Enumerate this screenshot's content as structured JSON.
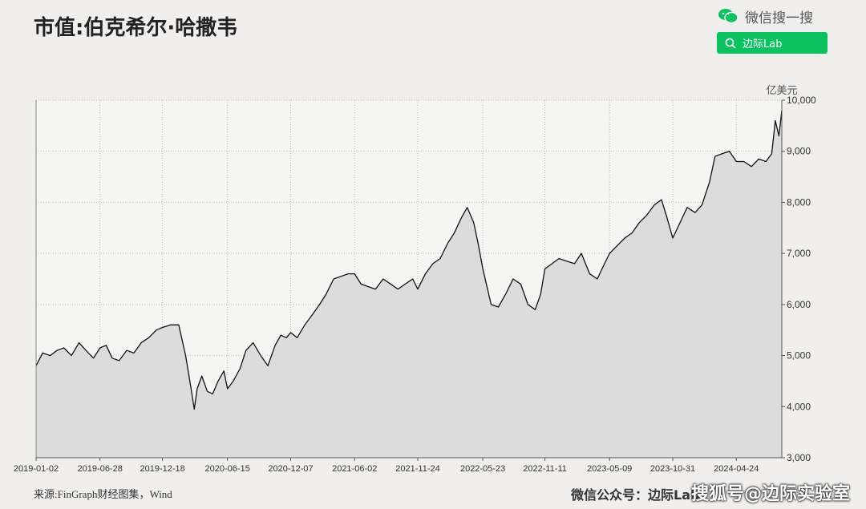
{
  "title": "市值:伯克希尔·哈撒韦",
  "wechat": {
    "label": "微信搜一搜",
    "search_text": "边际Lab",
    "brand_color": "#0bc160"
  },
  "footer": {
    "source": "来源:FinGraph财经图集，Wind",
    "account": "微信公众号：边际Lab",
    "watermark": "搜狐号@边际实验室"
  },
  "chart_data": {
    "type": "area",
    "unit_label": "亿美元",
    "ylim": [
      3000,
      10000
    ],
    "yticks": [
      "3,000",
      "4,000",
      "5,000",
      "6,000",
      "7,000",
      "8,000",
      "9,000",
      "10,000"
    ],
    "ytick_values": [
      3000,
      4000,
      5000,
      6000,
      7000,
      8000,
      9000,
      10000
    ],
    "xticks": [
      "2019-01-02",
      "2019-06-28",
      "2019-12-18",
      "2020-06-15",
      "2020-12-07",
      "2021-06-02",
      "2021-11-24",
      "2022-05-23",
      "2022-11-11",
      "2023-05-09",
      "2023-10-31",
      "2024-04-24"
    ],
    "xtick_dates": [
      "2019-01-02",
      "2019-06-28",
      "2019-12-18",
      "2020-06-15",
      "2020-12-07",
      "2021-06-02",
      "2021-11-24",
      "2022-05-23",
      "2022-11-11",
      "2023-05-09",
      "2023-10-31",
      "2024-04-24"
    ],
    "grid": true,
    "colors": {
      "line": "#111111",
      "fill": "#dcdcdc",
      "grid": "#bbbbbb"
    },
    "series": [
      {
        "dates": [
          "2019-01-02",
          "2019-01-20",
          "2019-02-10",
          "2019-03-01",
          "2019-03-20",
          "2019-04-10",
          "2019-05-01",
          "2019-05-20",
          "2019-06-10",
          "2019-06-28",
          "2019-07-15",
          "2019-08-01",
          "2019-08-20",
          "2019-09-10",
          "2019-09-30",
          "2019-10-20",
          "2019-11-10",
          "2019-12-01",
          "2019-12-18",
          "2020-01-10",
          "2020-02-01",
          "2020-02-20",
          "2020-03-05",
          "2020-03-15",
          "2020-03-23",
          "2020-04-05",
          "2020-04-20",
          "2020-05-05",
          "2020-05-20",
          "2020-06-05",
          "2020-06-15",
          "2020-07-01",
          "2020-07-20",
          "2020-08-05",
          "2020-08-25",
          "2020-09-15",
          "2020-10-05",
          "2020-10-25",
          "2020-11-10",
          "2020-11-25",
          "2020-12-07",
          "2020-12-25",
          "2021-01-15",
          "2021-02-05",
          "2021-02-25",
          "2021-03-15",
          "2021-04-05",
          "2021-04-25",
          "2021-05-15",
          "2021-06-02",
          "2021-06-20",
          "2021-07-10",
          "2021-07-30",
          "2021-08-20",
          "2021-09-10",
          "2021-09-30",
          "2021-10-20",
          "2021-11-10",
          "2021-11-24",
          "2021-12-15",
          "2022-01-05",
          "2022-01-25",
          "2022-02-15",
          "2022-03-05",
          "2022-03-25",
          "2022-04-10",
          "2022-04-28",
          "2022-05-10",
          "2022-05-23",
          "2022-06-15",
          "2022-07-05",
          "2022-07-25",
          "2022-08-15",
          "2022-09-05",
          "2022-09-25",
          "2022-10-15",
          "2022-10-30",
          "2022-11-11",
          "2022-12-01",
          "2022-12-20",
          "2023-01-10",
          "2023-02-01",
          "2023-02-20",
          "2023-03-15",
          "2023-04-05",
          "2023-04-25",
          "2023-05-09",
          "2023-05-30",
          "2023-06-20",
          "2023-07-10",
          "2023-07-30",
          "2023-08-20",
          "2023-09-10",
          "2023-09-30",
          "2023-10-15",
          "2023-10-31",
          "2023-11-20",
          "2023-12-10",
          "2024-01-01",
          "2024-01-20",
          "2024-02-10",
          "2024-02-25",
          "2024-03-15",
          "2024-04-05",
          "2024-04-24",
          "2024-05-15",
          "2024-06-05",
          "2024-06-25",
          "2024-07-15",
          "2024-07-31",
          "2024-08-10",
          "2024-08-20",
          "2024-08-28"
        ],
        "values": [
          4800,
          5050,
          5000,
          5100,
          5150,
          5000,
          5250,
          5100,
          4950,
          5150,
          5200,
          4950,
          4900,
          5100,
          5050,
          5250,
          5350,
          5500,
          5550,
          5600,
          5600,
          5000,
          4400,
          3950,
          4350,
          4600,
          4300,
          4250,
          4500,
          4700,
          4350,
          4500,
          4750,
          5100,
          5250,
          5000,
          4800,
          5200,
          5400,
          5350,
          5450,
          5350,
          5600,
          5800,
          6000,
          6200,
          6500,
          6550,
          6600,
          6600,
          6400,
          6350,
          6300,
          6500,
          6400,
          6300,
          6400,
          6500,
          6300,
          6600,
          6800,
          6900,
          7200,
          7400,
          7700,
          7900,
          7600,
          7200,
          6700,
          6000,
          5950,
          6200,
          6500,
          6400,
          6000,
          5900,
          6200,
          6700,
          6800,
          6900,
          6850,
          6800,
          7000,
          6600,
          6500,
          6800,
          7000,
          7150,
          7300,
          7400,
          7600,
          7750,
          7950,
          8050,
          7700,
          7300,
          7600,
          7900,
          7800,
          7950,
          8400,
          8900,
          8950,
          9000,
          8800,
          8800,
          8700,
          8850,
          8800,
          8950,
          9600,
          9300,
          9800
        ]
      }
    ]
  }
}
